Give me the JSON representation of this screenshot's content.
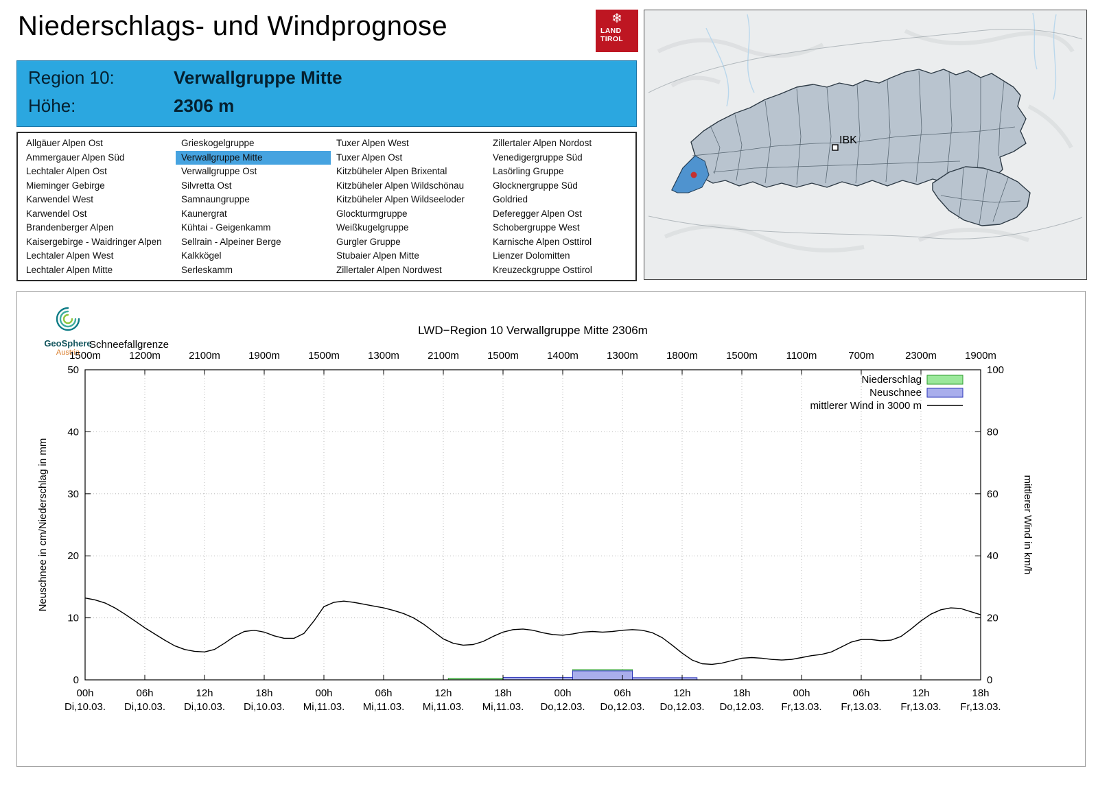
{
  "page": {
    "title": "Niederschlags- und Windprognose"
  },
  "brand": {
    "land_logo_line1": "LAND",
    "land_logo_line2": "TIROL",
    "land_logo_color": "#be1622"
  },
  "geosphere": {
    "name": "GeoSphere",
    "sub": "Austria"
  },
  "map": {
    "city_label": "IBK",
    "highlight_color": "#4f93cf",
    "marker_color": "#c53030"
  },
  "region_header": {
    "region_label": "Region 10:",
    "region_name": "Verwallgruppe Mitte",
    "altitude_label": "Höhe:",
    "altitude_value": "2306 m",
    "background": "#2ba7e0"
  },
  "region_list": {
    "selected": "Verwallgruppe Mitte",
    "highlight_color": "#46a3e0",
    "columns": [
      [
        "Allgäuer Alpen Ost",
        "Ammergauer Alpen Süd",
        "Lechtaler Alpen Ost",
        "Mieminger Gebirge",
        "Karwendel West",
        "Karwendel Ost",
        "Brandenberger Alpen",
        "Kaisergebirge - Waidringer Alpen",
        "Lechtaler Alpen West",
        "Lechtaler Alpen Mitte"
      ],
      [
        "Grieskogelgruppe",
        "Verwallgruppe Mitte",
        "Verwallgruppe Ost",
        "Silvretta Ost",
        "Samnaungruppe",
        "Kaunergrat",
        "Kühtai - Geigenkamm",
        "Sellrain - Alpeiner Berge",
        "Kalkkögel",
        "Serleskamm"
      ],
      [
        "Tuxer Alpen West",
        "Tuxer Alpen Ost",
        "Kitzbüheler Alpen Brixental",
        "Kitzbüheler Alpen Wildschönau",
        "Kitzbüheler Alpen Wildseeloder",
        "Glockturmgruppe",
        "Weißkugelgruppe",
        "Gurgler Gruppe",
        "Stubaier Alpen Mitte",
        "Zillertaler Alpen Nordwest"
      ],
      [
        "Zillertaler Alpen Nordost",
        "Venedigergruppe Süd",
        "Lasörling Gruppe",
        "Glocknergruppe Süd",
        "Goldried",
        "Deferegger Alpen Ost",
        "Schobergruppe West",
        "Karnische Alpen Osttirol",
        "Lienzer Dolomitten",
        "Kreuzeckgruppe Osttirol"
      ]
    ]
  },
  "chart_data": {
    "type": "line+bar",
    "title": "LWD−Region 10 Verwallgruppe Mitte 2306m",
    "snowline_label": "Schneefallgrenze",
    "snowline_values": [
      "1500m",
      "1200m",
      "2100m",
      "1900m",
      "1500m",
      "1300m",
      "2100m",
      "1500m",
      "1400m",
      "1300m",
      "1800m",
      "1500m",
      "1100m",
      "700m",
      "2300m",
      "1900m"
    ],
    "ylabel_left": "Neuschnee in cm/Niederschlag in mm",
    "ylabel_right": "mittlerer Wind in km/h",
    "ylim_left": [
      0,
      50
    ],
    "ylim_right": [
      0,
      100
    ],
    "yticks_left": [
      0,
      10,
      20,
      30,
      40,
      50
    ],
    "yticks_right": [
      0,
      20,
      40,
      60,
      80,
      100
    ],
    "x_hours_total": 90,
    "x_step_hours": 1,
    "grid": true,
    "legend_position": "top-right",
    "xticks": [
      {
        "hour": 0,
        "time": "00h",
        "date": "Di,10.03."
      },
      {
        "hour": 6,
        "time": "06h",
        "date": "Di,10.03."
      },
      {
        "hour": 12,
        "time": "12h",
        "date": "Di,10.03."
      },
      {
        "hour": 18,
        "time": "18h",
        "date": "Di,10.03."
      },
      {
        "hour": 24,
        "time": "00h",
        "date": "Mi,11.03."
      },
      {
        "hour": 30,
        "time": "06h",
        "date": "Mi,11.03."
      },
      {
        "hour": 36,
        "time": "12h",
        "date": "Mi,11.03."
      },
      {
        "hour": 42,
        "time": "18h",
        "date": "Mi,11.03."
      },
      {
        "hour": 48,
        "time": "00h",
        "date": "Do,12.03."
      },
      {
        "hour": 54,
        "time": "06h",
        "date": "Do,12.03."
      },
      {
        "hour": 60,
        "time": "12h",
        "date": "Do,12.03."
      },
      {
        "hour": 66,
        "time": "18h",
        "date": "Do,12.03."
      },
      {
        "hour": 72,
        "time": "00h",
        "date": "Fr,13.03."
      },
      {
        "hour": 78,
        "time": "06h",
        "date": "Fr,13.03."
      },
      {
        "hour": 84,
        "time": "12h",
        "date": "Fr,13.03."
      },
      {
        "hour": 90,
        "time": "18h",
        "date": "Fr,13.03."
      }
    ],
    "legend": [
      {
        "label": "Niederschlag",
        "type": "box",
        "fill": "#9be89b",
        "stroke": "#2e9b2e"
      },
      {
        "label": "Neuschnee",
        "type": "box",
        "fill": "#a9aeec",
        "stroke": "#2b35b8"
      },
      {
        "label": "mittlerer Wind in 3000 m",
        "type": "line",
        "stroke": "#000000"
      }
    ],
    "colors": {
      "precip_fill": "#9be89b",
      "precip_stroke": "#2e9b2e",
      "snow_fill": "#a9aeec",
      "snow_stroke": "#2b35b8",
      "wind": "#000000"
    },
    "precip_segments": [
      {
        "from": 36.5,
        "to": 42,
        "value": 0.25
      },
      {
        "from": 42,
        "to": 49,
        "value": 0.3
      },
      {
        "from": 49,
        "to": 55,
        "value": 1.65
      },
      {
        "from": 55,
        "to": 61,
        "value": 0.3
      }
    ],
    "snow_segments": [
      {
        "from": 42,
        "to": 49,
        "value": 0.4
      },
      {
        "from": 49,
        "to": 55,
        "value": 1.45
      },
      {
        "from": 55,
        "to": 61.5,
        "value": 0.35
      }
    ],
    "wind_kmh": [
      26.4,
      25.8,
      24.8,
      23.2,
      21.2,
      19.0,
      16.8,
      14.8,
      12.8,
      11.0,
      9.8,
      9.2,
      9.0,
      9.8,
      11.8,
      14.0,
      15.6,
      16.0,
      15.4,
      14.2,
      13.4,
      13.4,
      15.0,
      19.0,
      23.6,
      25.0,
      25.4,
      25.0,
      24.4,
      23.8,
      23.2,
      22.4,
      21.4,
      20.0,
      18.0,
      15.6,
      13.2,
      11.8,
      11.2,
      11.4,
      12.4,
      14.0,
      15.4,
      16.2,
      16.4,
      16.0,
      15.2,
      14.6,
      14.4,
      14.8,
      15.4,
      15.6,
      15.4,
      15.6,
      16.0,
      16.2,
      16.0,
      15.2,
      13.6,
      11.2,
      8.6,
      6.4,
      5.2,
      5.0,
      5.4,
      6.2,
      7.0,
      7.2,
      7.0,
      6.6,
      6.4,
      6.6,
      7.2,
      7.8,
      8.2,
      9.0,
      10.6,
      12.2,
      13.0,
      13.0,
      12.6,
      12.8,
      14.0,
      16.4,
      19.0,
      21.2,
      22.6,
      23.2,
      23.0,
      22.0,
      21.0
    ]
  }
}
